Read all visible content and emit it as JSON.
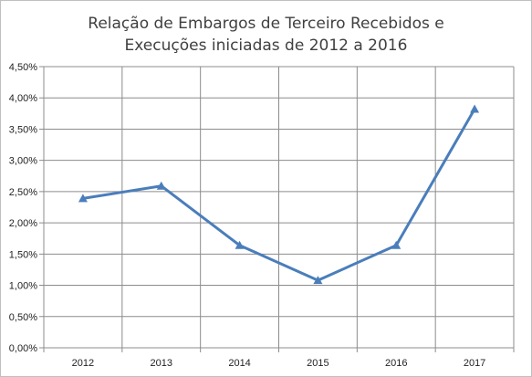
{
  "chart_data": {
    "type": "line",
    "title_lines": [
      "Relação de Embargos de Terceiro Recebidos e",
      "Execuções iniciadas de 2012 a 2016"
    ],
    "xlabel": "",
    "ylabel": "",
    "categories": [
      "2012",
      "2013",
      "2014",
      "2015",
      "2016",
      "2017"
    ],
    "series": [
      {
        "values": [
          2.39,
          2.59,
          1.64,
          1.08,
          1.64,
          3.82
        ],
        "color": "#4a7ebb",
        "marker": "triangle"
      }
    ],
    "ylim": [
      0,
      4.5
    ],
    "yticks": [
      "0,00%",
      "0,50%",
      "1,00%",
      "1,50%",
      "2,00%",
      "2,50%",
      "3,00%",
      "3,50%",
      "4,00%",
      "4,50%"
    ],
    "grid": true,
    "legend": "none"
  }
}
